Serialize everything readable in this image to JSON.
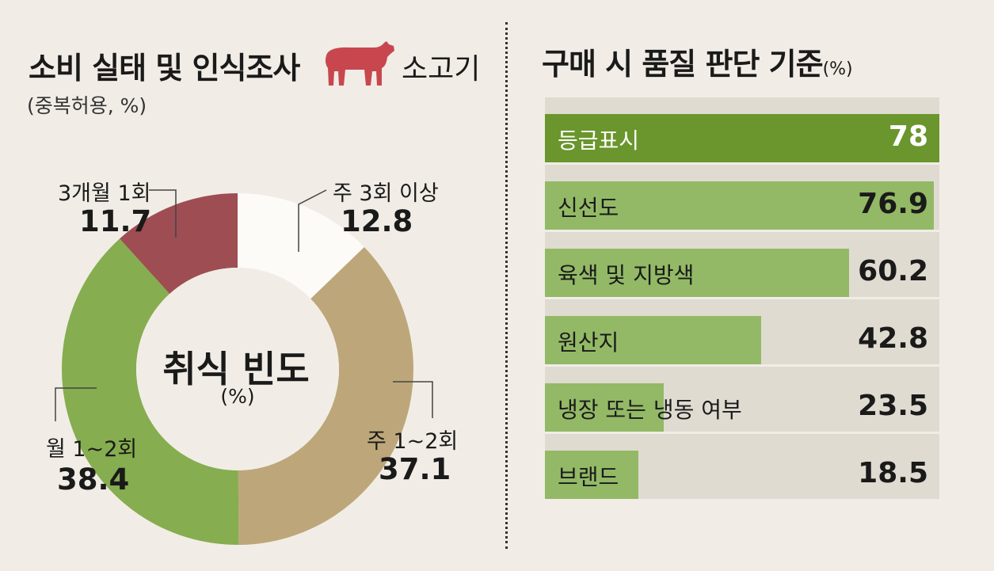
{
  "left": {
    "title": "소비 실태 및 인식조사",
    "subtitle": "(중복허용, %)",
    "legend_label": "소고기",
    "legend_icon": "cow-icon",
    "legend_color": "#c8474f"
  },
  "right": {
    "title": "구매 시 품질 판단 기준",
    "title_unit": "(%)"
  },
  "chart_data": [
    {
      "type": "pie",
      "title": "취식 빈도",
      "unit": "(%)",
      "slices": [
        {
          "label": "주 3회 이상",
          "value": 12.8,
          "display": "12.8",
          "color": "#fdfbf7"
        },
        {
          "label": "주 1~2회",
          "value": 37.1,
          "display": "37.1",
          "color": "#bda77a"
        },
        {
          "label": "월 1~2회",
          "value": 38.4,
          "display": "38.4",
          "color": "#86ad4f"
        },
        {
          "label": "3개월 1회",
          "value": 11.7,
          "display": "11.7",
          "color": "#9e4d52"
        }
      ]
    },
    {
      "type": "bar",
      "orientation": "horizontal",
      "title": "구매 시 품질 판단 기준",
      "unit": "(%)",
      "xlim": [
        0,
        78
      ],
      "categories": [
        "등급표시",
        "신선도",
        "육색 및 지방색",
        "원산지",
        "냉장 또는 냉동 여부",
        "브랜드"
      ],
      "values": [
        78,
        76.9,
        60.2,
        42.8,
        23.5,
        18.5
      ],
      "display": [
        "78",
        "76.9",
        "60.2",
        "42.8",
        "23.5",
        "18.5"
      ],
      "bar_color": "#93b966",
      "highlight_color": "#6a962d",
      "track_color": "#e0dbd1"
    }
  ]
}
